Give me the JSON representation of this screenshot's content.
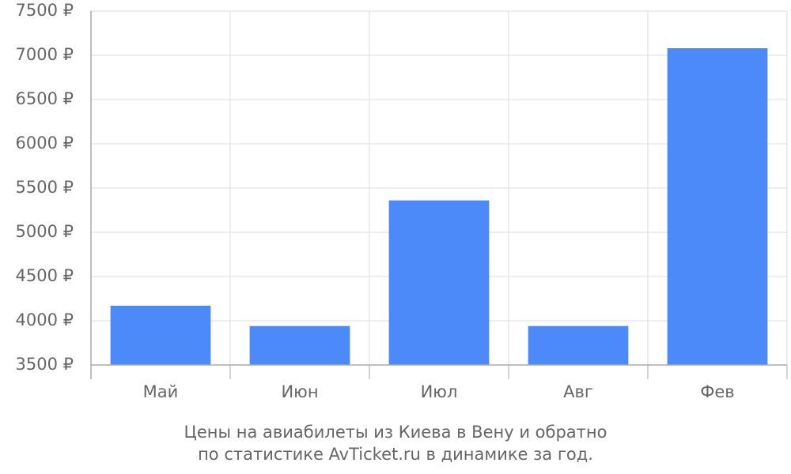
{
  "chart_data": {
    "type": "bar",
    "title": [
      "Цены на авиабилеты из Киева в Вену и обратно",
      "по статистике AvTicket.ru в динамике за год."
    ],
    "categories": [
      "Май",
      "Июн",
      "Июл",
      "Авг",
      "Фев"
    ],
    "values": [
      4170,
      3940,
      5360,
      3940,
      7080
    ],
    "color": "#4d8af9",
    "ylim": [
      3500,
      7500
    ],
    "yticks": [
      {
        "value": 3500,
        "label": "3500 ₽"
      },
      {
        "value": 4000,
        "label": "4000 ₽"
      },
      {
        "value": 4500,
        "label": "4500 ₽"
      },
      {
        "value": 5000,
        "label": "5000 ₽"
      },
      {
        "value": 5500,
        "label": "5500 ₽"
      },
      {
        "value": 6000,
        "label": "6000 ₽"
      },
      {
        "value": 6500,
        "label": "6500 ₽"
      },
      {
        "value": 7000,
        "label": "7000 ₽"
      },
      {
        "value": 7500,
        "label": "7500 ₽"
      }
    ],
    "grid": true
  }
}
